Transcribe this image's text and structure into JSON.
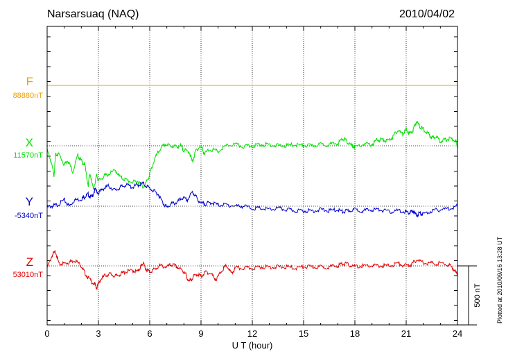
{
  "header": {
    "station": "Narsarsuaq (NAQ)",
    "date": "2010/04/02"
  },
  "footnote": "Plotted at 2010/09/16 13:28 UT",
  "scale_bar_label": "500 nT",
  "colors": {
    "F": "#f0a000",
    "X": "#00e000",
    "Y": "#0000d0",
    "Z": "#e00000"
  },
  "chart_data": {
    "type": "line",
    "xlabel": "U T (hour)",
    "xlim": [
      0,
      24
    ],
    "xticks": [
      "0",
      "3",
      "6",
      "9",
      "12",
      "15",
      "18",
      "21",
      "24"
    ],
    "grid": true,
    "scale_nT": 500,
    "series": [
      {
        "name": "F",
        "baseline_label": "88880nT",
        "x": [
          0,
          24
        ],
        "values": [
          0,
          0
        ]
      },
      {
        "name": "X",
        "baseline_label": "11570nT",
        "x": [
          0,
          0.2,
          0.4,
          0.5,
          0.7,
          1.0,
          1.2,
          1.5,
          1.8,
          2.0,
          2.2,
          2.4,
          2.5,
          2.7,
          2.9,
          3.0,
          3.3,
          3.6,
          4.0,
          4.3,
          4.6,
          5.0,
          5.3,
          5.6,
          5.9,
          6.0,
          6.3,
          6.6,
          6.9,
          7.2,
          7.5,
          7.8,
          8.0,
          8.3,
          8.5,
          8.7,
          9.0,
          9.2,
          9.5,
          10.0,
          10.5,
          11.0,
          11.5,
          12.0,
          12.5,
          13.0,
          13.5,
          14.0,
          14.5,
          15.0,
          15.5,
          16.0,
          16.5,
          17.0,
          17.3,
          17.5,
          17.8,
          18.0,
          18.5,
          19.0,
          19.3,
          19.6,
          19.9,
          20.2,
          20.5,
          20.8,
          21.0,
          21.2,
          21.4,
          21.6,
          21.8,
          22.0,
          22.3,
          22.5,
          22.7,
          23.0,
          23.3,
          23.6,
          23.9,
          24.0
        ],
        "values": [
          -30,
          -110,
          -240,
          -70,
          -60,
          -150,
          -110,
          -210,
          -70,
          -120,
          -150,
          -330,
          -220,
          -360,
          -240,
          -290,
          -250,
          -230,
          -200,
          -260,
          -280,
          -300,
          -290,
          -340,
          -280,
          -230,
          -100,
          -20,
          20,
          10,
          0,
          10,
          -30,
          -40,
          -130,
          -30,
          10,
          -60,
          -20,
          -40,
          10,
          20,
          0,
          10,
          20,
          20,
          10,
          10,
          20,
          10,
          10,
          20,
          20,
          30,
          70,
          50,
          10,
          0,
          20,
          20,
          60,
          60,
          50,
          80,
          140,
          110,
          150,
          110,
          140,
          220,
          170,
          150,
          110,
          80,
          90,
          50,
          60,
          70,
          50,
          0
        ]
      },
      {
        "name": "Y",
        "baseline_label": "-5340nT",
        "x": [
          0,
          0.3,
          0.6,
          1.0,
          1.3,
          1.6,
          2.0,
          2.2,
          2.4,
          2.6,
          2.8,
          3.0,
          3.3,
          3.6,
          4.0,
          4.3,
          4.6,
          5.0,
          5.3,
          5.6,
          5.9,
          6.2,
          6.5,
          6.8,
          7.0,
          7.3,
          7.6,
          7.9,
          8.2,
          8.5,
          8.7,
          9.0,
          9.3,
          9.6,
          10.0,
          10.5,
          11.0,
          11.5,
          12.0,
          12.5,
          13.0,
          13.5,
          14.0,
          14.5,
          15.0,
          15.5,
          16.0,
          16.5,
          17.0,
          17.3,
          17.6,
          18.0,
          18.5,
          19.0,
          19.5,
          20.0,
          20.5,
          21.0,
          21.2,
          21.4,
          21.6,
          21.8,
          22.0,
          22.5,
          23.0,
          23.5,
          24.0
        ],
        "values": [
          0,
          10,
          20,
          60,
          10,
          60,
          70,
          90,
          110,
          80,
          150,
          120,
          160,
          180,
          140,
          170,
          190,
          170,
          190,
          200,
          170,
          140,
          110,
          30,
          0,
          30,
          40,
          80,
          60,
          130,
          90,
          30,
          30,
          40,
          20,
          20,
          10,
          10,
          -10,
          -10,
          -20,
          -10,
          -20,
          -30,
          -30,
          -30,
          -20,
          -30,
          -20,
          -40,
          -30,
          -20,
          -30,
          -20,
          -20,
          -40,
          -30,
          -40,
          -50,
          -30,
          -70,
          -50,
          -60,
          -30,
          -20,
          -10,
          10
        ]
      },
      {
        "name": "Z",
        "baseline_label": "53010nT",
        "x": [
          0,
          0.3,
          0.5,
          0.7,
          1.0,
          1.3,
          1.6,
          2.0,
          2.2,
          2.5,
          2.8,
          2.9,
          3.1,
          3.4,
          3.7,
          4.0,
          4.3,
          4.6,
          5.0,
          5.3,
          5.5,
          5.6,
          5.8,
          6.0,
          6.3,
          6.6,
          7.0,
          7.3,
          7.6,
          7.9,
          8.1,
          8.3,
          8.5,
          8.8,
          9.0,
          9.3,
          9.6,
          9.9,
          10.2,
          10.5,
          10.8,
          11.0,
          11.5,
          12.0,
          12.5,
          13.0,
          13.5,
          14.0,
          14.5,
          15.0,
          15.5,
          16.0,
          16.5,
          17.0,
          17.3,
          17.6,
          18.0,
          18.5,
          19.0,
          19.5,
          20.0,
          20.5,
          21.0,
          21.3,
          21.6,
          22.0,
          22.5,
          23.0,
          23.5,
          23.8,
          24.0
        ],
        "values": [
          -10,
          100,
          130,
          20,
          30,
          40,
          60,
          10,
          -50,
          -110,
          -150,
          -180,
          -110,
          -70,
          -60,
          -80,
          -60,
          -40,
          -30,
          -40,
          10,
          30,
          -20,
          -40,
          -20,
          10,
          0,
          20,
          0,
          -30,
          -60,
          -130,
          -90,
          -60,
          -80,
          -40,
          -60,
          -110,
          -30,
          10,
          -60,
          -10,
          -10,
          -10,
          0,
          0,
          0,
          0,
          -10,
          0,
          0,
          0,
          0,
          10,
          30,
          20,
          0,
          10,
          10,
          10,
          10,
          30,
          10,
          20,
          60,
          40,
          30,
          30,
          20,
          -20,
          -70
        ]
      }
    ]
  }
}
